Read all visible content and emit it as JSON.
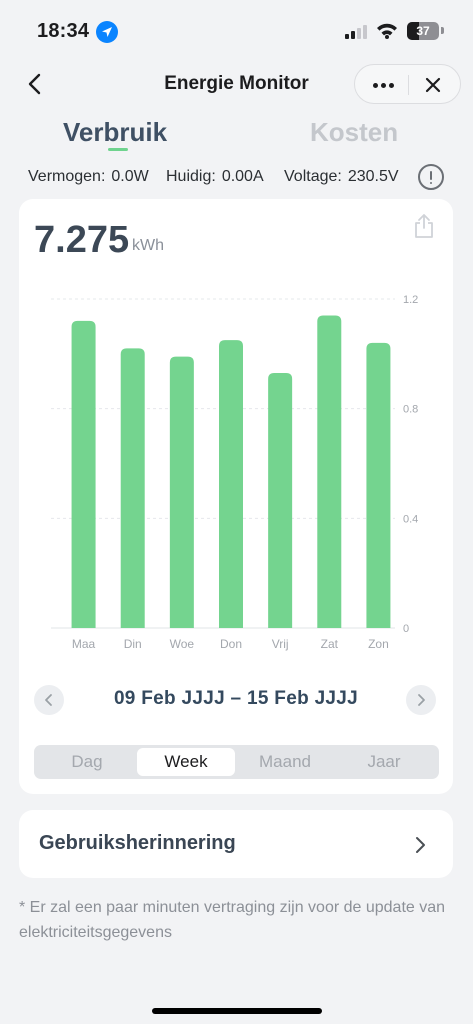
{
  "status_bar": {
    "time": "18:34",
    "battery_percent": "37",
    "battery_level": 0.37
  },
  "nav": {
    "title": "Energie Monitor"
  },
  "tabs": [
    {
      "label": "Verbruik",
      "active": true
    },
    {
      "label": "Kosten",
      "active": false
    }
  ],
  "readings": {
    "power_label": "Vermogen:",
    "power_value": "0.0W",
    "current_label": "Huidig:",
    "current_value": "0.00A",
    "voltage_label": "Voltage:",
    "voltage_value": "230.5V"
  },
  "summary": {
    "total": "7.275",
    "unit": "kWh"
  },
  "chart_data": {
    "type": "bar",
    "categories": [
      "Maa",
      "Din",
      "Woe",
      "Don",
      "Vrij",
      "Zat",
      "Zon"
    ],
    "values": [
      1.12,
      1.02,
      0.99,
      1.05,
      0.93,
      1.14,
      1.04
    ],
    "ylim": [
      0,
      1.2
    ],
    "y_ticks": [
      "0",
      "0.4",
      "0.8",
      "1.2"
    ],
    "y_tick_values": [
      0,
      0.4,
      0.8,
      1.2
    ],
    "grid": true,
    "bar_color": "#74d48f"
  },
  "date_nav": {
    "range": "09 Feb JJJJ – 15 Feb JJJJ"
  },
  "periods": [
    {
      "label": "Dag",
      "active": false
    },
    {
      "label": "Week",
      "active": true
    },
    {
      "label": "Maand",
      "active": false
    },
    {
      "label": "Jaar",
      "active": false
    }
  ],
  "reminder": {
    "label": "Gebruiksherinnering"
  },
  "footnote": "* Er zal een paar minuten vertraging zijn voor de update van elektriciteitsgegevens",
  "colors": {
    "accent": "#6fd38e",
    "title_dark": "#3f5064"
  }
}
